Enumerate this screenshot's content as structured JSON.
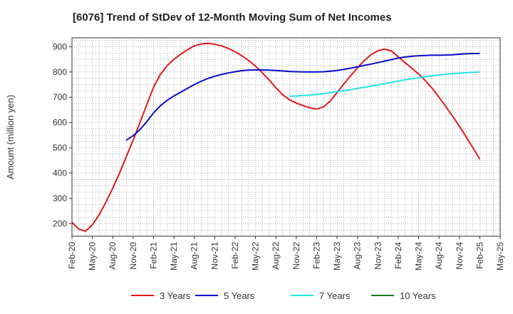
{
  "chart_data": {
    "type": "line",
    "title": "[6076]  Trend of StDev of 12-Month Moving Sum of Net Incomes",
    "xlabel": "",
    "ylabel": "Amount (million yen)",
    "ylim": [
      150,
      935
    ],
    "yticks": [
      200,
      300,
      400,
      500,
      600,
      700,
      800,
      900
    ],
    "xticks": [
      "Feb-20",
      "May-20",
      "Aug-20",
      "Nov-20",
      "Feb-21",
      "May-21",
      "Aug-21",
      "Nov-21",
      "Feb-22",
      "May-22",
      "Aug-22",
      "Nov-22",
      "Feb-23",
      "May-23",
      "Aug-23",
      "Nov-23",
      "Feb-24",
      "May-24",
      "Aug-24",
      "Nov-24",
      "Feb-25",
      "May-25"
    ],
    "grid": true,
    "legend_position": "bottom",
    "series": [
      {
        "name": "3 Years",
        "color": "#e31a1c",
        "points": [
          [
            "Feb-20",
            205
          ],
          [
            "Mar-20",
            178
          ],
          [
            "Apr-20",
            170
          ],
          [
            "May-20",
            195
          ],
          [
            "Jun-20",
            235
          ],
          [
            "Jul-20",
            285
          ],
          [
            "Aug-20",
            340
          ],
          [
            "Sep-20",
            400
          ],
          [
            "Oct-20",
            465
          ],
          [
            "Nov-20",
            530
          ],
          [
            "Dec-20",
            600
          ],
          [
            "Jan-21",
            670
          ],
          [
            "Feb-21",
            740
          ],
          [
            "Mar-21",
            790
          ],
          [
            "Apr-21",
            825
          ],
          [
            "May-21",
            850
          ],
          [
            "Jun-21",
            870
          ],
          [
            "Jul-21",
            888
          ],
          [
            "Aug-21",
            903
          ],
          [
            "Sep-21",
            911
          ],
          [
            "Oct-21",
            913
          ],
          [
            "Nov-21",
            910
          ],
          [
            "Dec-21",
            903
          ],
          [
            "Jan-22",
            893
          ],
          [
            "Feb-22",
            880
          ],
          [
            "Mar-22",
            864
          ],
          [
            "Apr-22",
            845
          ],
          [
            "May-22",
            823
          ],
          [
            "Jun-22",
            797
          ],
          [
            "Jul-22",
            768
          ],
          [
            "Aug-22",
            738
          ],
          [
            "Sep-22",
            710
          ],
          [
            "Oct-22",
            690
          ],
          [
            "Nov-22",
            677
          ],
          [
            "Dec-22",
            667
          ],
          [
            "Jan-23",
            658
          ],
          [
            "Feb-23",
            653
          ],
          [
            "Mar-23",
            662
          ],
          [
            "Apr-23",
            685
          ],
          [
            "May-23",
            718
          ],
          [
            "Jun-23",
            752
          ],
          [
            "Jul-23",
            785
          ],
          [
            "Aug-23",
            816
          ],
          [
            "Sep-23",
            845
          ],
          [
            "Oct-23",
            868
          ],
          [
            "Nov-23",
            884
          ],
          [
            "Dec-23",
            890
          ],
          [
            "Jan-24",
            883
          ],
          [
            "Feb-24",
            860
          ],
          [
            "Mar-24",
            837
          ],
          [
            "Apr-24",
            815
          ],
          [
            "May-24",
            792
          ],
          [
            "Jun-24",
            765
          ],
          [
            "Jul-24",
            735
          ],
          [
            "Aug-24",
            700
          ],
          [
            "Sep-24",
            663
          ],
          [
            "Oct-24",
            625
          ],
          [
            "Nov-24",
            585
          ],
          [
            "Dec-24",
            543
          ],
          [
            "Jan-25",
            500
          ],
          [
            "Feb-25",
            455
          ]
        ]
      },
      {
        "name": "5 Years",
        "color": "#0a0ac8",
        "points": [
          [
            "Oct-20",
            530
          ],
          [
            "Nov-20",
            548
          ],
          [
            "Dec-20",
            572
          ],
          [
            "Jan-21",
            603
          ],
          [
            "Feb-21",
            638
          ],
          [
            "Mar-21",
            666
          ],
          [
            "Apr-21",
            688
          ],
          [
            "May-21",
            705
          ],
          [
            "Jun-21",
            720
          ],
          [
            "Jul-21",
            735
          ],
          [
            "Aug-21",
            750
          ],
          [
            "Sep-21",
            763
          ],
          [
            "Oct-21",
            774
          ],
          [
            "Nov-21",
            783
          ],
          [
            "Dec-21",
            790
          ],
          [
            "Jan-22",
            796
          ],
          [
            "Feb-22",
            801
          ],
          [
            "Mar-22",
            805
          ],
          [
            "Apr-22",
            807
          ],
          [
            "May-22",
            808
          ],
          [
            "Jun-22",
            808
          ],
          [
            "Jul-22",
            807
          ],
          [
            "Aug-22",
            806
          ],
          [
            "Sep-22",
            804
          ],
          [
            "Oct-22",
            802
          ],
          [
            "Nov-22",
            801
          ],
          [
            "Dec-22",
            800
          ],
          [
            "Jan-23",
            800
          ],
          [
            "Feb-23",
            800
          ],
          [
            "Mar-23",
            801
          ],
          [
            "Apr-23",
            803
          ],
          [
            "May-23",
            806
          ],
          [
            "Jun-23",
            810
          ],
          [
            "Jul-23",
            815
          ],
          [
            "Aug-23",
            820
          ],
          [
            "Sep-23",
            826
          ],
          [
            "Oct-23",
            831
          ],
          [
            "Nov-23",
            837
          ],
          [
            "Dec-23",
            843
          ],
          [
            "Jan-24",
            849
          ],
          [
            "Feb-24",
            855
          ],
          [
            "Mar-24",
            859
          ],
          [
            "Apr-24",
            862
          ],
          [
            "May-24",
            864
          ],
          [
            "Jun-24",
            865
          ],
          [
            "Jul-24",
            866
          ],
          [
            "Aug-24",
            866
          ],
          [
            "Sep-24",
            867
          ],
          [
            "Oct-24",
            868
          ],
          [
            "Nov-24",
            870
          ],
          [
            "Dec-24",
            872
          ],
          [
            "Jan-25",
            873
          ],
          [
            "Feb-25",
            873
          ]
        ]
      },
      {
        "name": "7 Years",
        "color": "#22e5e5",
        "points": [
          [
            "Oct-22",
            704
          ],
          [
            "Nov-22",
            705
          ],
          [
            "Dec-22",
            707
          ],
          [
            "Jan-23",
            708
          ],
          [
            "Feb-23",
            711
          ],
          [
            "Mar-23",
            714
          ],
          [
            "Apr-23",
            718
          ],
          [
            "May-23",
            722
          ],
          [
            "Jun-23",
            726
          ],
          [
            "Jul-23",
            730
          ],
          [
            "Aug-23",
            735
          ],
          [
            "Sep-23",
            739
          ],
          [
            "Oct-23",
            744
          ],
          [
            "Nov-23",
            749
          ],
          [
            "Dec-23",
            754
          ],
          [
            "Jan-24",
            759
          ],
          [
            "Feb-24",
            764
          ],
          [
            "Mar-24",
            769
          ],
          [
            "Apr-24",
            773
          ],
          [
            "May-24",
            777
          ],
          [
            "Jun-24",
            781
          ],
          [
            "Jul-24",
            785
          ],
          [
            "Aug-24",
            788
          ],
          [
            "Sep-24",
            791
          ],
          [
            "Oct-24",
            793
          ],
          [
            "Nov-24",
            795
          ],
          [
            "Dec-24",
            797
          ],
          [
            "Jan-25",
            799
          ],
          [
            "Feb-25",
            800
          ]
        ]
      },
      {
        "name": "10 Years",
        "color": "#1a7a1a",
        "points": []
      }
    ]
  }
}
